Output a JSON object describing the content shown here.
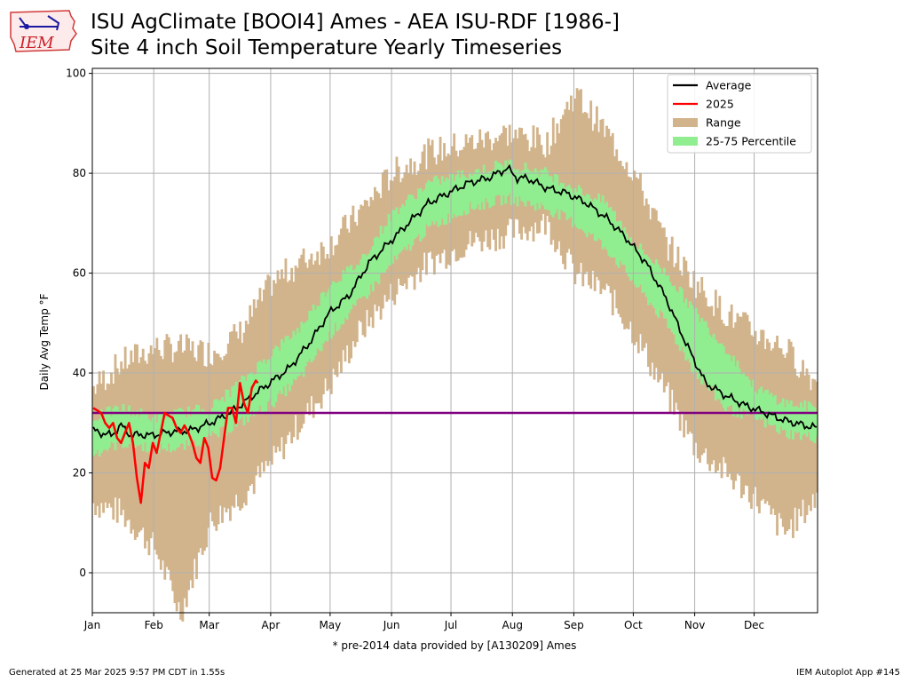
{
  "header": {
    "logo_text": "IEM",
    "title_line1": "ISU AgClimate [BOOI4] Ames - AEA ISU-RDF [1986-]",
    "title_line2": "Site 4 inch Soil Temperature Yearly Timeseries"
  },
  "footer": {
    "generated": "Generated at 25 Mar 2025 9:57 PM CDT in 1.55s",
    "app": "IEM Autoplot App #145"
  },
  "chart_data": {
    "type": "line",
    "title": "ISU AgClimate [BOOI4] Ames - AEA ISU-RDF [1986-]",
    "subtitle": "Site 4 inch Soil Temperature Yearly Timeseries",
    "ylabel": "Daily Avg Temp °F",
    "xlabel": "* pre-2014 data provided by [A130209] Ames",
    "x_unit": "day of year",
    "xlim": [
      0,
      366
    ],
    "ylim": [
      -8,
      101
    ],
    "y_ticks": [
      0,
      20,
      40,
      60,
      80,
      100
    ],
    "x_ticks": [
      {
        "label": "Jan",
        "day": 1
      },
      {
        "label": "Feb",
        "day": 32
      },
      {
        "label": "Mar",
        "day": 60
      },
      {
        "label": "Apr",
        "day": 91
      },
      {
        "label": "May",
        "day": 121
      },
      {
        "label": "Jun",
        "day": 152
      },
      {
        "label": "Jul",
        "day": 182
      },
      {
        "label": "Aug",
        "day": 213
      },
      {
        "label": "Sep",
        "day": 244
      },
      {
        "label": "Oct",
        "day": 274
      },
      {
        "label": "Nov",
        "day": 305
      },
      {
        "label": "Dec",
        "day": 335
      }
    ],
    "grid": true,
    "legend_position": "upper-right",
    "reference_line": {
      "y": 32,
      "color": "#800080"
    },
    "series": [
      {
        "name": "Average",
        "color": "#000000",
        "x": [
          1,
          5,
          10,
          15,
          20,
          25,
          30,
          40,
          50,
          60,
          70,
          80,
          90,
          100,
          110,
          120,
          130,
          140,
          150,
          160,
          170,
          180,
          190,
          200,
          205,
          210,
          215,
          220,
          230,
          240,
          250,
          260,
          270,
          280,
          290,
          300,
          310,
          320,
          330,
          340,
          350,
          360,
          366
        ],
        "values": [
          28.5,
          28,
          27.5,
          29.5,
          27.5,
          27.7,
          27.5,
          28.2,
          28.5,
          30,
          32,
          35,
          38,
          41,
          46,
          52,
          55.5,
          62,
          66,
          70,
          74,
          76,
          78,
          79,
          80,
          81,
          79,
          79,
          77,
          76,
          74,
          71,
          67,
          62,
          55,
          46,
          38,
          35.5,
          33.5,
          32,
          30.5,
          29.5,
          29
        ]
      },
      {
        "name": "2025",
        "color": "#ff0000",
        "x": [
          1,
          3,
          5,
          7,
          9,
          11,
          13,
          15,
          17,
          19,
          21,
          23,
          25,
          27,
          29,
          31,
          33,
          35,
          37,
          39,
          41,
          43,
          45,
          47,
          49,
          51,
          53,
          55,
          57,
          59,
          61,
          63,
          65,
          67,
          69,
          71,
          73,
          75,
          77,
          79,
          81,
          83,
          84
        ],
        "values": [
          33,
          32.5,
          32,
          30,
          29,
          30,
          27,
          26,
          28,
          30,
          26,
          19,
          14,
          22,
          21,
          26,
          24,
          28,
          32,
          31.5,
          31,
          29,
          28,
          29.5,
          28,
          26,
          23,
          22,
          27,
          25,
          19,
          18.5,
          21,
          27,
          33,
          33,
          30,
          38,
          34,
          32,
          37,
          38.5,
          38
        ]
      },
      {
        "name": "Range",
        "color": "#d2b48c",
        "x": [
          1,
          15,
          32,
          45,
          60,
          75,
          91,
          105,
          121,
          135,
          152,
          170,
          190,
          210,
          230,
          244,
          260,
          274,
          290,
          305,
          320,
          335,
          350,
          366
        ],
        "low": [
          14,
          12,
          5,
          -8,
          10,
          15,
          22,
          30,
          38,
          48,
          56,
          62,
          66,
          68,
          70,
          60,
          56,
          48,
          36,
          25,
          20,
          15,
          8,
          15
        ],
        "high": [
          37,
          42,
          45,
          45,
          44,
          48,
          58,
          62,
          66,
          72,
          80,
          84,
          86,
          88,
          86,
          96,
          88,
          80,
          66,
          58,
          52,
          48,
          45,
          38
        ]
      },
      {
        "name": "25-75 Percentile",
        "color": "#90ee90",
        "x": [
          1,
          15,
          32,
          45,
          60,
          75,
          91,
          105,
          121,
          135,
          152,
          170,
          190,
          210,
          230,
          244,
          260,
          274,
          290,
          305,
          320,
          335,
          350,
          366
        ],
        "low": [
          24,
          26,
          25,
          25,
          27,
          30,
          34,
          39,
          48,
          54,
          62,
          69,
          73,
          75,
          73,
          70,
          65,
          58,
          50,
          40,
          33,
          31,
          28,
          27
        ],
        "high": [
          31,
          33,
          31,
          32,
          33,
          38,
          44,
          49,
          58,
          62,
          72,
          78,
          80,
          82,
          80,
          77,
          74,
          66,
          60,
          52,
          45,
          37,
          34,
          33
        ]
      }
    ]
  }
}
